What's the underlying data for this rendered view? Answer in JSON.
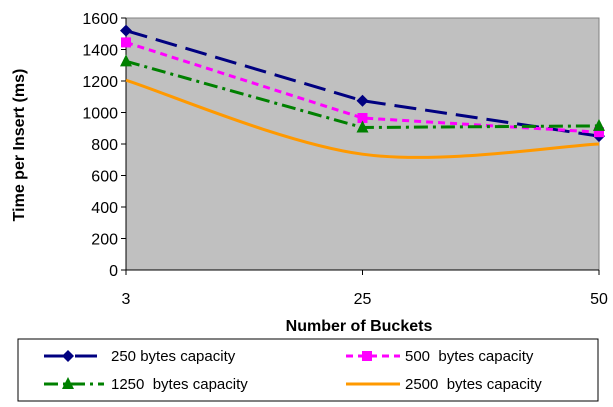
{
  "chart_data": {
    "type": "line",
    "title": "",
    "xlabel": "Number of Buckets",
    "ylabel": "Time per Insert (ms)",
    "x": [
      3,
      25,
      50
    ],
    "x_tick_labels": [
      "3",
      "25",
      "50"
    ],
    "y_ticks": [
      0,
      200,
      400,
      600,
      800,
      1000,
      1200,
      1400,
      1600
    ],
    "ylim": [
      0,
      1600
    ],
    "grid": false,
    "plot_background": "#c0c0c0",
    "legend_position": "bottom",
    "series": [
      {
        "name": "250 bytes capacity",
        "values": [
          1520,
          1075,
          850
        ],
        "color": "#000080",
        "marker": "diamond",
        "dash": "long-dash"
      },
      {
        "name": "500  bytes capacity",
        "values": [
          1445,
          965,
          875
        ],
        "color": "#ff00ff",
        "marker": "square",
        "dash": "short-dash"
      },
      {
        "name": "1250  bytes capacity",
        "values": [
          1325,
          905,
          915
        ],
        "color": "#008000",
        "marker": "triangle",
        "dash": "dash-dot"
      },
      {
        "name": "2500  bytes capacity",
        "values": [
          1205,
          735,
          800
        ],
        "color": "#ff9900",
        "marker": "dash",
        "dash": "solid",
        "smooth": true
      }
    ]
  }
}
